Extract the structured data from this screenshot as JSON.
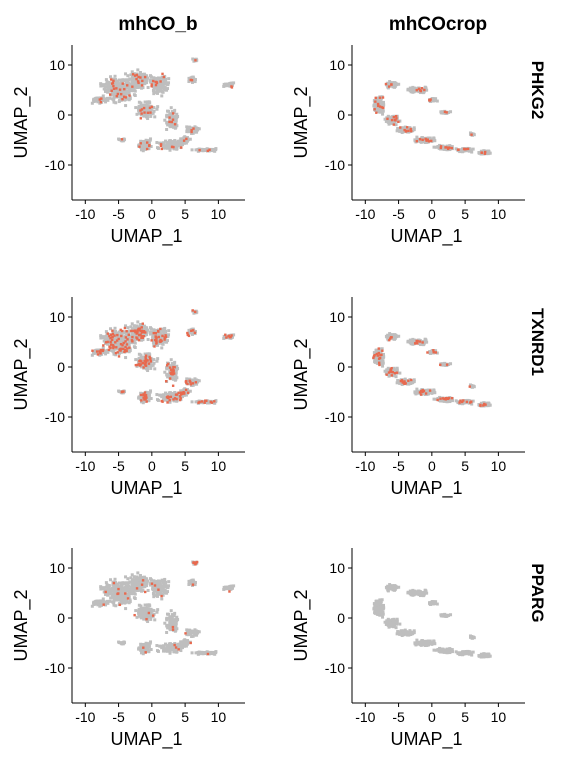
{
  "columns": [
    "mhCO_b",
    "mhCOcrop"
  ],
  "rows": [
    "PHKG2",
    "TXNRD1",
    "PPARG"
  ],
  "colors": {
    "background_cell": "#bebebe",
    "expressed_cell": "#e8694e",
    "axis": "#000000"
  },
  "chart_data": {
    "type": "scatter",
    "layout": "grid 3 rows x 2 columns",
    "xlabel": "UMAP_1",
    "ylabel": "UMAP_2",
    "xlim": [
      -12,
      14
    ],
    "ylim": [
      -17,
      14
    ],
    "xticks": [
      -10,
      -5,
      0,
      5,
      10
    ],
    "yticks": [
      -10,
      0,
      10
    ],
    "grid": false,
    "panels": [
      {
        "column": "mhCO_b",
        "row": "PHKG2",
        "expression_level": "low, scattered"
      },
      {
        "column": "mhCOcrop",
        "row": "PHKG2",
        "expression_level": "low, scattered"
      },
      {
        "column": "mhCO_b",
        "row": "TXNRD1",
        "expression_level": "moderate, widespread"
      },
      {
        "column": "mhCOcrop",
        "row": "TXNRD1",
        "expression_level": "low-moderate"
      },
      {
        "column": "mhCO_b",
        "row": "PPARG",
        "expression_level": "sparse, cluster near (6,11)"
      },
      {
        "column": "mhCOcrop",
        "row": "PPARG",
        "expression_level": "none"
      }
    ]
  }
}
